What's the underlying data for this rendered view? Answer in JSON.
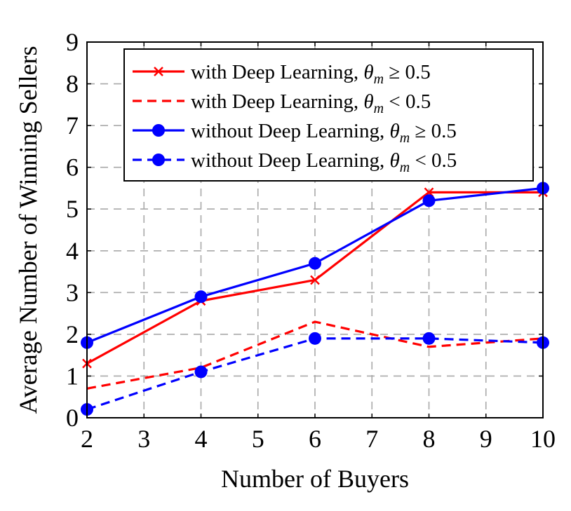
{
  "chart_data": {
    "type": "line",
    "xlabel": "Number of Buyers",
    "ylabel": "Average Number of Winning Sellers",
    "xlim": [
      2,
      10
    ],
    "ylim": [
      0,
      9
    ],
    "xticks": [
      "2",
      "3",
      "4",
      "5",
      "6",
      "7",
      "8",
      "9",
      "10"
    ],
    "yticks": [
      "0",
      "1",
      "2",
      "3",
      "4",
      "5",
      "6",
      "7",
      "8",
      "9"
    ],
    "grid": true,
    "legend_position": "top-right",
    "series": [
      {
        "name": "with Deep Learning, θm ≥ 0.5",
        "name_text": "with Deep Learning, ",
        "name_math": "θ",
        "name_sub": "m",
        "name_rel": " ≥ 0.5",
        "color": "#ff0000",
        "style": "solid",
        "marker": "x",
        "x": [
          2,
          4,
          6,
          8,
          10
        ],
        "y": [
          1.3,
          2.8,
          3.3,
          5.4,
          5.4
        ]
      },
      {
        "name": "with Deep Learning, θm < 0.5",
        "name_text": "with Deep Learning, ",
        "name_math": "θ",
        "name_sub": "m",
        "name_rel": " < 0.5",
        "color": "#ff0000",
        "style": "dashed",
        "marker": "none",
        "x": [
          2,
          4,
          6,
          8,
          10
        ],
        "y": [
          0.7,
          1.2,
          2.3,
          1.7,
          1.9
        ]
      },
      {
        "name": "without Deep Learning, θm ≥ 0.5",
        "name_text": "without Deep Learning, ",
        "name_math": "θ",
        "name_sub": "m",
        "name_rel": " ≥ 0.5",
        "color": "#0000ff",
        "style": "solid",
        "marker": "circle",
        "x": [
          2,
          4,
          6,
          8,
          10
        ],
        "y": [
          1.8,
          2.9,
          3.7,
          5.2,
          5.5
        ]
      },
      {
        "name": "without Deep Learning, θm < 0.5",
        "name_text": "without Deep Learning, ",
        "name_math": "θ",
        "name_sub": "m",
        "name_rel": " < 0.5",
        "color": "#0000ff",
        "style": "dashed",
        "marker": "circle",
        "x": [
          2,
          4,
          6,
          8,
          10
        ],
        "y": [
          0.2,
          1.1,
          1.9,
          1.9,
          1.8
        ]
      }
    ]
  }
}
